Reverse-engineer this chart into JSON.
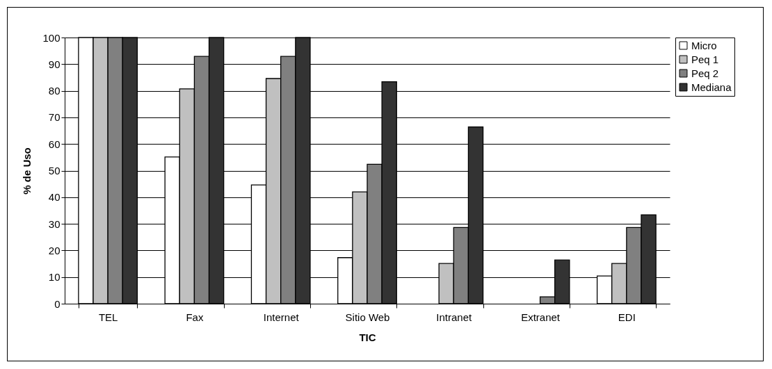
{
  "chart_data": {
    "type": "bar",
    "xlabel": "TIC",
    "ylabel": "% de Uso",
    "categories": [
      "TEL",
      "Fax",
      "Internet",
      "Sitio Web",
      "Intranet",
      "Extranet",
      "EDI"
    ],
    "series": [
      {
        "name": "Micro",
        "color": "#ffffff",
        "values": [
          100,
          55.1,
          44.6,
          17.3,
          0,
          0,
          10.4
        ]
      },
      {
        "name": "Peq 1",
        "color": "#c0c0c0",
        "values": [
          100,
          80.7,
          84.6,
          42.0,
          15.1,
          0,
          15.1
        ]
      },
      {
        "name": "Peq 2",
        "color": "#808080",
        "values": [
          100,
          92.9,
          92.9,
          52.4,
          28.6,
          2.6,
          28.6
        ]
      },
      {
        "name": "Mediana",
        "color": "#333333",
        "values": [
          100,
          100,
          100,
          83.4,
          66.4,
          16.4,
          33.4
        ]
      }
    ],
    "ylim": [
      0,
      100
    ],
    "yticks": [
      0,
      10,
      20,
      30,
      40,
      50,
      60,
      70,
      80,
      90,
      100
    ],
    "grid": "y",
    "legend": "right"
  }
}
